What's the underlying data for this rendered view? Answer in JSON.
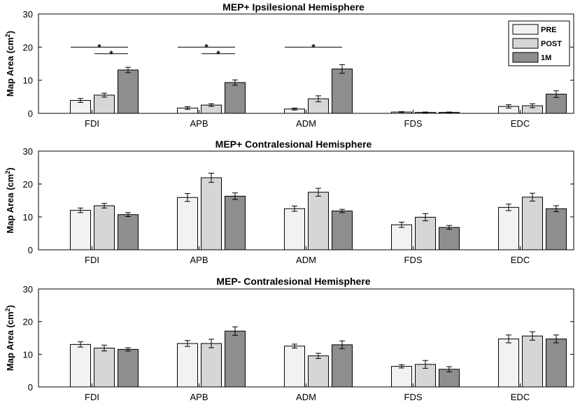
{
  "chart_data": [
    {
      "type": "bar",
      "title": "MEP+ Ipsilesional Hemisphere",
      "ylabel": "Map Area (cm²)",
      "ylabel_base": "Map Area (cm",
      "ylabel_sup": "2",
      "ylabel_close": ")",
      "ylim": [
        0,
        30
      ],
      "yticks": [
        0,
        10,
        20,
        30
      ],
      "categories": [
        "FDI",
        "APB",
        "ADM",
        "FDS",
        "EDC"
      ],
      "series": [
        {
          "name": "PRE",
          "values": [
            3.9,
            1.6,
            1.3,
            0.4,
            2.1
          ],
          "errors": [
            0.6,
            0.4,
            0.3,
            0.1,
            0.5
          ],
          "color": "#f2f2f2"
        },
        {
          "name": "POST",
          "values": [
            5.5,
            2.5,
            4.4,
            0.3,
            2.3
          ],
          "errors": [
            0.6,
            0.4,
            0.9,
            0.1,
            0.6
          ],
          "color": "#d6d6d6"
        },
        {
          "name": "1M",
          "values": [
            13.1,
            9.3,
            13.4,
            0.3,
            5.8
          ],
          "errors": [
            0.8,
            0.8,
            1.3,
            0.1,
            1.0
          ],
          "color": "#8e8e8e"
        }
      ],
      "legend": {
        "position": "top-right",
        "entries": [
          "PRE",
          "POST",
          "1M"
        ]
      },
      "significance": [
        {
          "category": 0,
          "from": 0,
          "to": 2,
          "y": 20,
          "mark": "*"
        },
        {
          "category": 0,
          "from": 1,
          "to": 2,
          "y": 18,
          "mark": "*"
        },
        {
          "category": 1,
          "from": 0,
          "to": 2,
          "y": 20,
          "mark": "*"
        },
        {
          "category": 1,
          "from": 1,
          "to": 2,
          "y": 18,
          "mark": "*"
        },
        {
          "category": 2,
          "from": 0,
          "to": 2,
          "y": 20,
          "mark": "*"
        }
      ]
    },
    {
      "type": "bar",
      "title": "MEP+ Contralesional Hemisphere",
      "ylabel": "Map Area (cm²)",
      "ylabel_base": "Map Area (cm",
      "ylabel_sup": "2",
      "ylabel_close": ")",
      "ylim": [
        0,
        30
      ],
      "yticks": [
        0,
        10,
        20,
        30
      ],
      "categories": [
        "FDI",
        "APB",
        "ADM",
        "FDS",
        "EDC"
      ],
      "series": [
        {
          "name": "PRE",
          "values": [
            12.0,
            15.9,
            12.5,
            7.6,
            12.9
          ],
          "errors": [
            0.7,
            1.2,
            0.8,
            0.8,
            1.0
          ],
          "color": "#f2f2f2"
        },
        {
          "name": "POST",
          "values": [
            13.4,
            21.9,
            17.5,
            9.9,
            16.0
          ],
          "errors": [
            0.7,
            1.4,
            1.2,
            1.1,
            1.2
          ],
          "color": "#d6d6d6"
        },
        {
          "name": "1M",
          "values": [
            10.7,
            16.3,
            11.8,
            6.8,
            12.5
          ],
          "errors": [
            0.6,
            1.0,
            0.5,
            0.6,
            0.9
          ],
          "color": "#8e8e8e"
        }
      ],
      "significance": []
    },
    {
      "type": "bar",
      "title": "MEP- Contralesional Hemisphere",
      "ylabel": "Map Area (cm²)",
      "ylabel_base": "Map Area (cm",
      "ylabel_sup": "2",
      "ylabel_close": ")",
      "ylim": [
        0,
        30
      ],
      "yticks": [
        0,
        10,
        20,
        30
      ],
      "categories": [
        "FDI",
        "APB",
        "ADM",
        "FDS",
        "EDC"
      ],
      "series": [
        {
          "name": "PRE",
          "values": [
            13.0,
            13.3,
            12.5,
            6.3,
            14.7
          ],
          "errors": [
            0.8,
            0.9,
            0.6,
            0.5,
            1.2
          ],
          "color": "#f2f2f2"
        },
        {
          "name": "POST",
          "values": [
            11.9,
            13.3,
            9.5,
            6.9,
            15.6
          ],
          "errors": [
            0.9,
            1.3,
            0.8,
            1.2,
            1.3
          ],
          "color": "#d6d6d6"
        },
        {
          "name": "1M",
          "values": [
            11.5,
            17.1,
            12.9,
            5.4,
            14.7
          ],
          "errors": [
            0.5,
            1.3,
            1.2,
            0.8,
            1.2
          ],
          "color": "#8e8e8e"
        }
      ],
      "significance": []
    }
  ]
}
